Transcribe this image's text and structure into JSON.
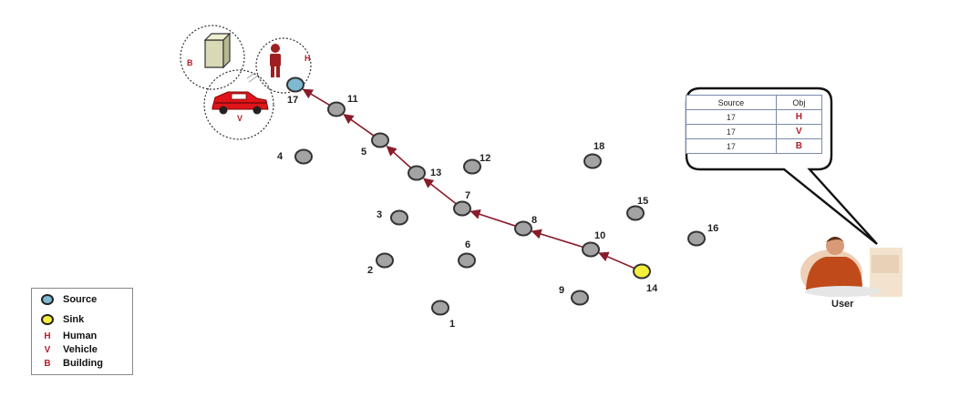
{
  "colors": {
    "node_fill": "#a3a3a3",
    "node_stroke": "#333333",
    "source_fill": "#7fb9d0",
    "sink_fill": "#f4ef3a",
    "route_color": "#8a1c2a",
    "object_letter_color": "#b0202a"
  },
  "nodes": [
    {
      "id": "1",
      "role": "sensor"
    },
    {
      "id": "2",
      "role": "sensor"
    },
    {
      "id": "3",
      "role": "sensor"
    },
    {
      "id": "4",
      "role": "sensor"
    },
    {
      "id": "5",
      "role": "sensor"
    },
    {
      "id": "6",
      "role": "sensor"
    },
    {
      "id": "7",
      "role": "sensor"
    },
    {
      "id": "8",
      "role": "sensor"
    },
    {
      "id": "9",
      "role": "sensor"
    },
    {
      "id": "10",
      "role": "sensor"
    },
    {
      "id": "11",
      "role": "sensor"
    },
    {
      "id": "12",
      "role": "sensor"
    },
    {
      "id": "13",
      "role": "sensor"
    },
    {
      "id": "14",
      "role": "sink"
    },
    {
      "id": "15",
      "role": "sensor"
    },
    {
      "id": "16",
      "role": "sensor"
    },
    {
      "id": "17",
      "role": "source"
    },
    {
      "id": "18",
      "role": "sensor"
    }
  ],
  "route": [
    "14",
    "10",
    "8",
    "7",
    "13",
    "5",
    "11",
    "17"
  ],
  "objects": {
    "building_letter": "B",
    "human_letter": "H",
    "vehicle_letter": "V"
  },
  "table": {
    "headers": [
      "Source",
      "Obj"
    ],
    "rows": [
      {
        "source": "17",
        "obj": "H"
      },
      {
        "source": "17",
        "obj": "V"
      },
      {
        "source": "17",
        "obj": "B"
      }
    ]
  },
  "user": {
    "label": "User"
  },
  "legend": {
    "source": "Source",
    "sink": "Sink",
    "human_key": "H",
    "human": "Human",
    "vehicle_key": "V",
    "vehicle": "Vehicle",
    "building_key": "B",
    "building": "Building"
  }
}
